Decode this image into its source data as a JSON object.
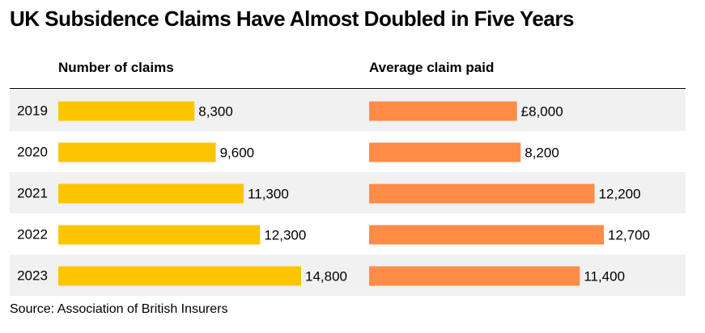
{
  "title": "UK Subsidence Claims Have Almost Doubled in Five Years",
  "source": "Source: Association of British Insurers",
  "colors": {
    "claims_bar": "#fcc500",
    "paid_bar": "#ff8c47",
    "stripe": "#f1f1f1"
  },
  "chart_data": [
    {
      "type": "bar",
      "orientation": "horizontal",
      "title": "Number of claims",
      "categories": [
        "2019",
        "2020",
        "2021",
        "2022",
        "2023"
      ],
      "values": [
        8300,
        9600,
        11300,
        12300,
        14800
      ],
      "value_labels": [
        "8,300",
        "9,600",
        "11,300",
        "12,300",
        "14,800"
      ]
    },
    {
      "type": "bar",
      "orientation": "horizontal",
      "title": "Average claim paid",
      "categories": [
        "2019",
        "2020",
        "2021",
        "2022",
        "2023"
      ],
      "values": [
        8000,
        8200,
        12200,
        12700,
        11400
      ],
      "value_labels": [
        "£8,000",
        "8,200",
        "12,200",
        "12,700",
        "11,400"
      ]
    }
  ]
}
